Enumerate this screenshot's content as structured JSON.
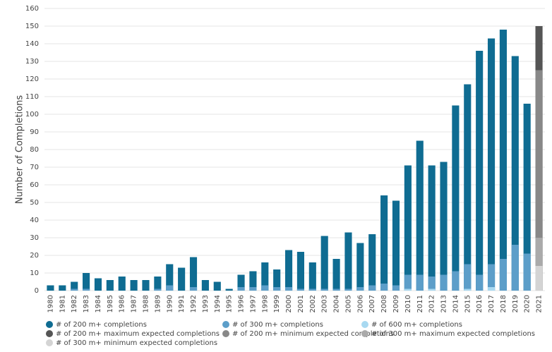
{
  "chart_data": {
    "type": "bar",
    "y_label": "Number of Completions",
    "categories": [
      "1980",
      "1981",
      "1982",
      "1983",
      "1984",
      "1985",
      "1986",
      "1987",
      "1988",
      "1989",
      "1990",
      "1991",
      "1992",
      "1993",
      "1994",
      "1995",
      "1996",
      "1997",
      "1998",
      "1999",
      "2000",
      "2001",
      "2002",
      "2003",
      "2004",
      "2005",
      "2006",
      "2007",
      "2008",
      "2009",
      "2010",
      "2011",
      "2012",
      "2013",
      "2014",
      "2015",
      "2016",
      "2017",
      "2018",
      "2019",
      "2020",
      "2021"
    ],
    "series": [
      {
        "name": "# of 200 m+ completions",
        "color": "#0f6c92",
        "values": [
          3,
          3,
          5,
          10,
          7,
          6,
          8,
          6,
          6,
          8,
          15,
          13,
          19,
          6,
          5,
          1,
          9,
          11,
          16,
          12,
          23,
          22,
          16,
          31,
          18,
          33,
          27,
          32,
          54,
          51,
          71,
          85,
          71,
          73,
          105,
          117,
          136,
          143,
          148,
          133,
          106,
          null
        ]
      },
      {
        "name": "# of 300 m+ completions",
        "color": "#5c9ec9",
        "values": [
          0,
          0,
          1,
          1,
          0,
          0,
          0,
          0,
          0,
          1,
          3,
          0,
          2,
          0,
          0,
          0,
          2,
          2,
          3,
          2,
          2,
          1,
          1,
          1,
          1,
          1,
          2,
          3,
          4,
          3,
          9,
          9,
          8,
          9,
          11,
          15,
          9,
          15,
          18,
          26,
          21,
          null
        ]
      },
      {
        "name": "# of 600 m+ completions",
        "color": "#a8d9f1",
        "values": [
          0,
          0,
          0,
          0,
          0,
          0,
          0,
          0,
          0,
          0,
          0,
          0,
          0,
          0,
          0,
          0,
          0,
          0,
          0,
          0,
          0,
          0,
          0,
          0,
          0,
          0,
          0,
          0,
          0,
          0,
          1,
          0,
          1,
          0,
          0,
          1,
          0,
          2,
          0,
          0,
          0,
          null
        ]
      },
      {
        "name": "# of 200 m+ maximum expected completions",
        "color": "#555555",
        "values": [
          null,
          null,
          null,
          null,
          null,
          null,
          null,
          null,
          null,
          null,
          null,
          null,
          null,
          null,
          null,
          null,
          null,
          null,
          null,
          null,
          null,
          null,
          null,
          null,
          null,
          null,
          null,
          null,
          null,
          null,
          null,
          null,
          null,
          null,
          null,
          null,
          null,
          null,
          null,
          null,
          null,
          150
        ]
      },
      {
        "name": "# of 200 m+ minimum expected completions",
        "color": "#888888",
        "values": [
          null,
          null,
          null,
          null,
          null,
          null,
          null,
          null,
          null,
          null,
          null,
          null,
          null,
          null,
          null,
          null,
          null,
          null,
          null,
          null,
          null,
          null,
          null,
          null,
          null,
          null,
          null,
          null,
          null,
          null,
          null,
          null,
          null,
          null,
          null,
          null,
          null,
          null,
          null,
          null,
          null,
          125
        ]
      },
      {
        "name": "# of 300 m+ maximum expected completions",
        "color": "#aaaaaa",
        "values": [
          null,
          null,
          null,
          null,
          null,
          null,
          null,
          null,
          null,
          null,
          null,
          null,
          null,
          null,
          null,
          null,
          null,
          null,
          null,
          null,
          null,
          null,
          null,
          null,
          null,
          null,
          null,
          null,
          null,
          null,
          null,
          null,
          null,
          null,
          null,
          null,
          null,
          null,
          null,
          null,
          null,
          30
        ]
      },
      {
        "name": "# of 300 m+ minimum expected completions",
        "color": "#d4d4d4",
        "values": [
          null,
          null,
          null,
          null,
          null,
          null,
          null,
          null,
          null,
          null,
          null,
          null,
          null,
          null,
          null,
          null,
          null,
          null,
          null,
          null,
          null,
          null,
          null,
          null,
          null,
          null,
          null,
          null,
          null,
          null,
          null,
          null,
          null,
          null,
          null,
          null,
          null,
          null,
          null,
          null,
          null,
          14
        ]
      }
    ],
    "ylim": [
      0,
      160
    ],
    "yticks": [
      0,
      10,
      20,
      30,
      40,
      50,
      60,
      70,
      80,
      90,
      100,
      110,
      120,
      130,
      140,
      150,
      160
    ],
    "grid": true
  }
}
